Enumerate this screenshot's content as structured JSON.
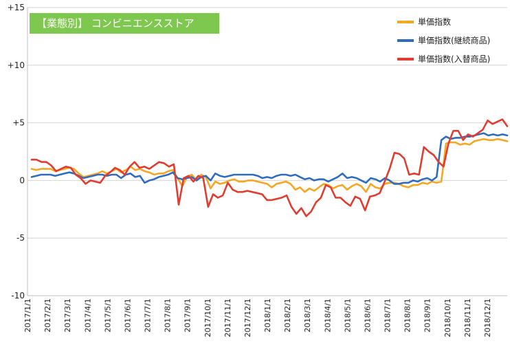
{
  "chart_title": "【業態別】 コンビニエンスストア",
  "legend_placement": "top-right",
  "chart_data": {
    "type": "line",
    "title": "【業態別】 コンビニエンスストア",
    "xlabel": "",
    "ylabel": "",
    "ylim": [
      -10,
      15
    ],
    "yticks": [
      {
        "value": 15,
        "label": "+15"
      },
      {
        "value": 10,
        "label": "+10"
      },
      {
        "value": 5,
        "label": "+5"
      },
      {
        "value": 0,
        "label": "0"
      },
      {
        "value": -5,
        "label": "-5"
      },
      {
        "value": -10,
        "label": "-10"
      }
    ],
    "x_tick_labels": [
      "2017/1/1",
      "2017/2/1",
      "2017/3/1",
      "2017/4/1",
      "2017/5/1",
      "2017/6/1",
      "2017/7/1",
      "2017/8/1",
      "2017/9/1",
      "2017/10/1",
      "2017/11/1",
      "2017/12/1",
      "2018/1/1",
      "2018/2/1",
      "2018/3/1",
      "2018/4/1",
      "2018/5/1",
      "2018/6/1",
      "2018/7/1",
      "2018/8/1",
      "2018/9/1",
      "2018/10/1",
      "2018/11/1",
      "2018/12/1"
    ],
    "grid": "horizontal",
    "series": [
      {
        "name": "単価指数",
        "color": "#f5a623",
        "values": [
          1.0,
          0.9,
          1.0,
          1.0,
          1.0,
          0.8,
          0.9,
          1.0,
          1.1,
          1.0,
          0.6,
          0.3,
          0.4,
          0.5,
          0.6,
          0.8,
          0.6,
          0.8,
          1.0,
          0.7,
          0.9,
          1.2,
          0.9,
          1.0,
          0.8,
          0.7,
          0.5,
          0.6,
          0.6,
          0.8,
          0.9,
          0.2,
          -0.5,
          0.3,
          0.5,
          0.0,
          0.5,
          0.3,
          -0.7,
          -0.1,
          -0.3,
          -0.2,
          0.0,
          0.1,
          -0.1,
          -0.1,
          0.0,
          0.0,
          -0.1,
          -0.2,
          -0.3,
          -0.6,
          -0.3,
          -0.2,
          -0.1,
          -0.3,
          -0.8,
          -0.6,
          -1.0,
          -0.7,
          -0.9,
          -0.6,
          -0.3,
          -0.4,
          -0.7,
          -0.5,
          -0.4,
          -0.8,
          -0.5,
          -0.3,
          -0.5,
          -1.0,
          -0.3,
          -0.6,
          -0.7,
          -0.3,
          -0.2,
          -0.2,
          -0.3,
          -0.5,
          -0.6,
          -0.4,
          -0.4,
          -0.2,
          -0.3,
          -0.1,
          -0.2,
          -0.1,
          3.2,
          3.3,
          3.3,
          3.1,
          3.2,
          3.1,
          3.4,
          3.5,
          3.6,
          3.5,
          3.5,
          3.6,
          3.5,
          3.4
        ]
      },
      {
        "name": "単価指数(継続商品)",
        "color": "#2f6bbf",
        "values": [
          0.3,
          0.4,
          0.5,
          0.5,
          0.5,
          0.4,
          0.5,
          0.6,
          0.7,
          0.6,
          0.4,
          0.2,
          0.3,
          0.4,
          0.5,
          0.5,
          0.4,
          0.5,
          0.5,
          0.2,
          0.5,
          0.6,
          0.3,
          0.4,
          -0.2,
          0.0,
          0.1,
          0.3,
          0.4,
          0.5,
          0.7,
          0.2,
          0.1,
          0.2,
          0.3,
          0.0,
          0.3,
          0.4,
          0.0,
          0.6,
          0.4,
          0.3,
          0.4,
          0.5,
          0.5,
          0.5,
          0.5,
          0.5,
          0.4,
          0.2,
          0.3,
          0.2,
          0.4,
          0.5,
          0.5,
          0.4,
          0.5,
          0.3,
          0.1,
          0.2,
          0.0,
          0.1,
          0.1,
          -0.1,
          0.1,
          0.3,
          0.6,
          0.2,
          0.3,
          0.2,
          0.0,
          -0.2,
          0.2,
          0.1,
          -0.1,
          0.2,
          0.0,
          -0.3,
          -0.3,
          -0.2,
          -0.2,
          0.0,
          -0.1,
          0.1,
          0.2,
          0.0,
          0.3,
          3.5,
          3.8,
          3.6,
          3.7,
          3.7,
          3.8,
          3.8,
          3.9,
          4.0,
          4.1,
          3.9,
          4.0,
          3.9,
          4.0,
          3.9
        ]
      },
      {
        "name": "単価指数(入替商品)",
        "color": "#e03c31",
        "values": [
          1.8,
          1.8,
          1.6,
          1.6,
          1.3,
          0.8,
          1.0,
          1.2,
          1.1,
          0.5,
          0.2,
          -0.3,
          0.0,
          -0.1,
          -0.2,
          0.4,
          0.7,
          1.1,
          0.9,
          0.5,
          1.2,
          1.6,
          1.1,
          1.2,
          1.0,
          1.3,
          1.6,
          1.5,
          1.2,
          1.4,
          -2.1,
          0.2,
          0.4,
          -0.1,
          0.4,
          0.2,
          -2.3,
          -1.2,
          -1.5,
          -1.3,
          -0.2,
          -0.8,
          -1.0,
          -1.0,
          -0.9,
          -1.0,
          -1.1,
          -1.2,
          -1.7,
          -1.7,
          -1.6,
          -1.5,
          -1.3,
          -2.3,
          -2.9,
          -2.4,
          -3.1,
          -2.7,
          -1.9,
          -1.5,
          -0.4,
          -0.6,
          -1.5,
          -1.5,
          -1.9,
          -2.2,
          -1.4,
          -1.6,
          -2.6,
          -1.4,
          -1.3,
          -1.1,
          -0.1,
          1.0,
          2.4,
          2.3,
          1.9,
          0.5,
          0.6,
          0.5,
          2.9,
          2.5,
          2.2,
          1.6,
          1.2,
          3.2,
          4.3,
          4.3,
          3.5,
          4.0,
          3.8,
          4.1,
          4.4,
          5.2,
          4.9,
          5.1,
          5.3,
          4.7
        ]
      }
    ]
  }
}
